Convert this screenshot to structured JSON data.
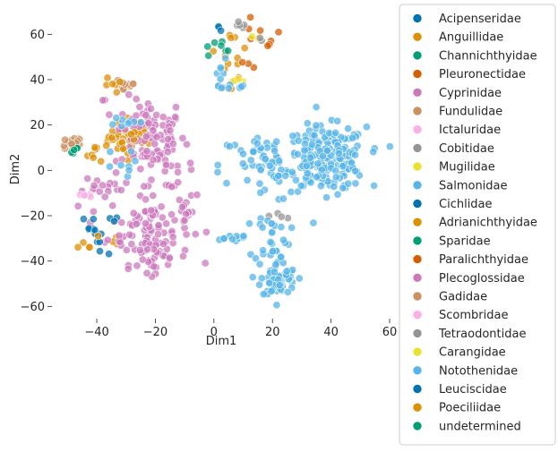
{
  "chart_data": {
    "type": "scatter",
    "title": "",
    "xlabel": "Dim1",
    "ylabel": "Dim2",
    "xlim": [
      -55,
      60
    ],
    "ylim": [
      -65,
      70
    ],
    "xticks": [
      -40,
      -20,
      0,
      20,
      40,
      60
    ],
    "yticks": [
      -60,
      -40,
      -20,
      0,
      20,
      40,
      60
    ],
    "grid": false,
    "legend_position": "outside right",
    "series": [
      {
        "name": "Acipenseridae",
        "color": "#0173b2",
        "clusters": [
          [
            2,
            62,
            1,
            1,
            3
          ]
        ]
      },
      {
        "name": "Anguillidae",
        "color": "#de8f05",
        "clusters": [
          [
            -28,
            15,
            4,
            4,
            40
          ],
          [
            -40,
            8,
            2,
            2,
            8
          ],
          [
            6,
            45,
            3,
            6,
            10
          ],
          [
            -35,
            -32,
            2,
            2,
            4
          ]
        ]
      },
      {
        "name": "Channichthyidae",
        "color": "#029e73",
        "clusters": [
          [
            0,
            53,
            2,
            2,
            3
          ]
        ]
      },
      {
        "name": "Pleuronectidae",
        "color": "#d55e00",
        "clusters": [
          [
            15,
            60,
            4,
            3,
            6
          ],
          [
            12,
            48,
            2,
            2,
            3
          ]
        ]
      },
      {
        "name": "Cyprinidae",
        "color": "#cc78bc",
        "clusters": [
          [
            -22,
            16,
            6,
            8,
            80
          ],
          [
            -22,
            -25,
            7,
            8,
            100
          ],
          [
            -37,
            -8,
            4,
            3,
            18
          ],
          [
            -20,
            -39,
            3,
            3,
            20
          ],
          [
            -17,
            2,
            5,
            5,
            25
          ],
          [
            -10,
            -22,
            2,
            4,
            10
          ]
        ]
      },
      {
        "name": "Fundulidae",
        "color": "#ca9161",
        "clusters": [
          [
            -48,
            12,
            2,
            2,
            12
          ],
          [
            -30,
            38,
            2,
            2,
            10
          ]
        ]
      },
      {
        "name": "Ictaluridae",
        "color": "#fbafe4",
        "clusters": [
          [
            -44,
            -11,
            2,
            1,
            4
          ]
        ]
      },
      {
        "name": "Cobitidae",
        "color": "#949494",
        "clusters": [
          [
            10,
            64,
            1,
            1,
            3
          ],
          [
            23,
            -20,
            2,
            2,
            4
          ]
        ]
      },
      {
        "name": "Mugilidae",
        "color": "#ece133",
        "clusters": [
          [
            7,
            40,
            1,
            1,
            2
          ],
          [
            14,
            58,
            1,
            1,
            2
          ]
        ]
      },
      {
        "name": "Salmonidae",
        "color": "#56b4e9",
        "clusters": [
          [
            38,
            5,
            7,
            7,
            220
          ],
          [
            18,
            2,
            8,
            8,
            60
          ],
          [
            22,
            -48,
            3,
            4,
            60
          ],
          [
            20,
            -30,
            3,
            6,
            30
          ],
          [
            6,
            -30,
            4,
            1,
            10
          ],
          [
            2,
            40,
            3,
            4,
            12
          ],
          [
            -33,
            3,
            3,
            3,
            8
          ],
          [
            -32,
            20,
            3,
            3,
            8
          ]
        ]
      },
      {
        "name": "Cichlidae",
        "color": "#0173b2",
        "clusters": [
          [
            -42,
            -26,
            2,
            3,
            10
          ],
          [
            -35,
            -22,
            1,
            1,
            3
          ]
        ]
      },
      {
        "name": "Adrianichthyidae",
        "color": "#de8f05",
        "clusters": [
          [
            -33,
            37,
            2,
            2,
            6
          ],
          [
            -44,
            -31,
            2,
            2,
            5
          ]
        ]
      },
      {
        "name": "Sparidae",
        "color": "#029e73",
        "clusters": [
          [
            -48,
            9,
            1,
            1,
            3
          ],
          [
            3,
            55,
            1,
            1,
            2
          ]
        ]
      },
      {
        "name": "Paralichthyidae",
        "color": "#d55e00",
        "clusters": [
          [
            18,
            55,
            1,
            1,
            2
          ]
        ]
      },
      {
        "name": "Plecoglossidae",
        "color": "#cc78bc",
        "clusters": [
          [
            -36,
            31,
            1,
            1,
            2
          ]
        ]
      },
      {
        "name": "Gadidae",
        "color": "#ca9161",
        "clusters": [
          [
            -50,
            13,
            1,
            1,
            3
          ]
        ]
      },
      {
        "name": "Scombridae",
        "color": "#fbafe4",
        "clusters": [
          [
            -46,
            -11,
            1,
            1,
            2
          ]
        ]
      },
      {
        "name": "Tetraodontidae",
        "color": "#949494",
        "clusters": [
          [
            10,
            65,
            1,
            1,
            2
          ],
          [
            15,
            57,
            1,
            1,
            2
          ]
        ]
      },
      {
        "name": "Carangidae",
        "color": "#ece133",
        "clusters": [
          [
            9,
            39,
            1,
            1,
            2
          ]
        ]
      },
      {
        "name": "Notothenidae",
        "color": "#56b4e9",
        "clusters": [
          [
            8,
            38,
            1,
            1,
            3
          ]
        ]
      },
      {
        "name": "Leuciscidae",
        "color": "#0173b2",
        "clusters": [
          [
            -37,
            -36,
            1,
            1,
            2
          ]
        ]
      },
      {
        "name": "Poeciliidae",
        "color": "#de8f05",
        "clusters": [
          [
            7,
            59,
            1,
            1,
            3
          ],
          [
            -30,
            14,
            2,
            2,
            5
          ]
        ]
      },
      {
        "name": "undetermined",
        "color": "#029e73",
        "clusters": [
          [
            -48,
            8,
            1,
            1,
            2
          ],
          [
            4,
            53,
            1,
            1,
            2
          ]
        ]
      }
    ]
  }
}
